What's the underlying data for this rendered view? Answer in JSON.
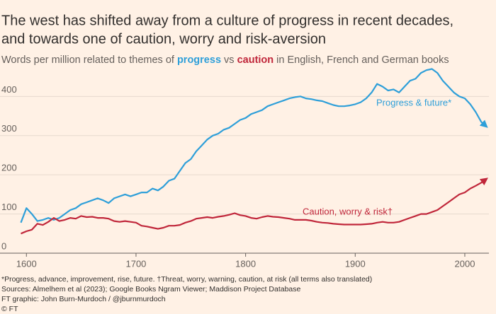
{
  "chart_data": {
    "type": "line",
    "title": [
      "The west has shifted away from a culture of progress in recent decades,",
      "and towards one of caution, worry and risk-aversion"
    ],
    "subtitle": [
      "Words per million related to themes of ",
      "progress",
      " vs ",
      "caution",
      " in English, French and German books"
    ],
    "notes": [
      "*Progress, advance, improvement, rise, future. †Threat, worry, warning, caution, at risk (all terms also translated)",
      "Sources: Almelhem et al (2023); Google Books Ngram Viewer; Maddison Project Database",
      "FT graphic: John Burn-Murdoch / @jburnmurdoch",
      "© FT"
    ],
    "x": [
      1595,
      1600,
      1605,
      1610,
      1615,
      1620,
      1625,
      1630,
      1635,
      1640,
      1645,
      1650,
      1655,
      1660,
      1665,
      1670,
      1675,
      1680,
      1685,
      1690,
      1695,
      1700,
      1705,
      1710,
      1715,
      1720,
      1725,
      1730,
      1735,
      1740,
      1745,
      1750,
      1755,
      1760,
      1765,
      1770,
      1775,
      1780,
      1785,
      1790,
      1795,
      1800,
      1805,
      1810,
      1815,
      1820,
      1825,
      1830,
      1835,
      1840,
      1845,
      1850,
      1855,
      1860,
      1865,
      1870,
      1875,
      1880,
      1885,
      1890,
      1895,
      1900,
      1905,
      1910,
      1915,
      1920,
      1925,
      1930,
      1935,
      1940,
      1945,
      1950,
      1955,
      1960,
      1965,
      1970,
      1975,
      1980,
      1985,
      1990,
      1995,
      2000,
      2005,
      2010,
      2015,
      2019
    ],
    "series": [
      {
        "name": "Progress & future*",
        "color": "#2e9fd9",
        "values": [
          78,
          115,
          100,
          82,
          85,
          90,
          85,
          90,
          100,
          110,
          115,
          125,
          130,
          135,
          140,
          135,
          128,
          140,
          145,
          150,
          145,
          150,
          155,
          155,
          165,
          160,
          170,
          185,
          190,
          210,
          230,
          240,
          260,
          275,
          290,
          300,
          305,
          315,
          320,
          330,
          340,
          345,
          355,
          360,
          365,
          375,
          380,
          385,
          390,
          395,
          398,
          400,
          395,
          393,
          390,
          388,
          383,
          378,
          375,
          375,
          377,
          380,
          385,
          395,
          410,
          432,
          425,
          415,
          418,
          410,
          425,
          440,
          445,
          460,
          467,
          470,
          460,
          440,
          425,
          410,
          400,
          395,
          380,
          360,
          335,
          325
        ]
      },
      {
        "name": "Caution, worry & risk†",
        "color": "#c0263a",
        "values": [
          50,
          56,
          60,
          75,
          72,
          80,
          90,
          82,
          85,
          90,
          88,
          95,
          92,
          93,
          90,
          90,
          88,
          82,
          80,
          82,
          80,
          78,
          70,
          68,
          65,
          62,
          65,
          70,
          70,
          72,
          78,
          82,
          88,
          90,
          92,
          90,
          93,
          95,
          98,
          102,
          97,
          95,
          90,
          88,
          92,
          95,
          93,
          92,
          90,
          88,
          85,
          85,
          85,
          83,
          80,
          78,
          77,
          75,
          74,
          73,
          73,
          73,
          73,
          74,
          75,
          78,
          80,
          78,
          78,
          80,
          85,
          90,
          95,
          100,
          100,
          105,
          110,
          120,
          130,
          140,
          150,
          155,
          165,
          172,
          180,
          188
        ]
      }
    ],
    "xlim": [
      1594,
      2022
    ],
    "ylim": [
      0,
      480
    ],
    "xticks": [
      1600,
      1700,
      1800,
      1900,
      2000
    ],
    "yticks": [
      0,
      100,
      200,
      300,
      400
    ],
    "grid": true
  }
}
